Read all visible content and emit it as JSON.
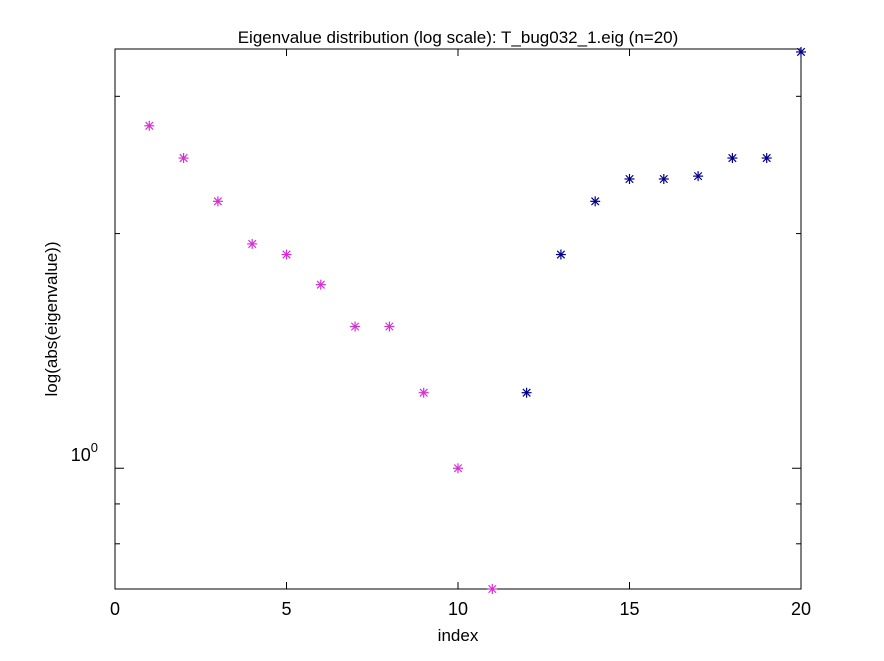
{
  "chart_data": {
    "type": "scatter",
    "title": "Eigenvalue distribution (log scale): T_bug032_1.eig (n=20)",
    "xlabel": "index",
    "ylabel": "log(abs(eigenvalue))",
    "xlim": [
      0,
      20
    ],
    "ylim": [
      0.7,
      3.45
    ],
    "y_scale": "log",
    "x_ticks": [
      0,
      5,
      10,
      15,
      20
    ],
    "x_tick_labels": [
      "0",
      "5",
      "10",
      "15",
      "20"
    ],
    "y_major_tick": 1,
    "y_major_tick_base": "10",
    "y_major_tick_exponent": "0",
    "grid": false,
    "marker": "asterisk",
    "series": [
      {
        "color": "#d62fd6",
        "x": [
          1,
          2,
          3,
          4,
          5,
          6,
          7,
          8,
          9,
          10,
          11
        ],
        "y": [
          2.75,
          2.5,
          2.2,
          1.94,
          1.88,
          1.72,
          1.52,
          1.52,
          1.25,
          1.0,
          0.7
        ]
      },
      {
        "color": "#00008b",
        "x": [
          12,
          13,
          14,
          15,
          16,
          17,
          18,
          19,
          20
        ],
        "y": [
          1.25,
          1.88,
          2.2,
          2.35,
          2.35,
          2.37,
          2.5,
          2.5,
          3.42
        ]
      }
    ]
  }
}
